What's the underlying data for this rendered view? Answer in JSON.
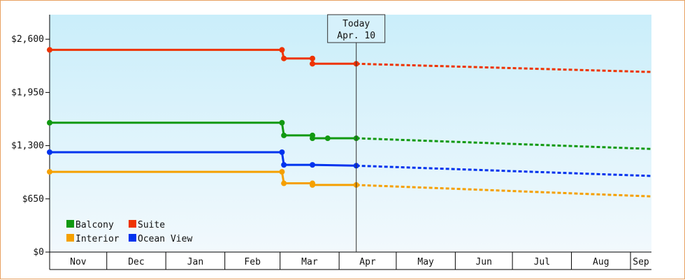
{
  "chart_data": {
    "type": "line",
    "title": "",
    "xlabel": "",
    "ylabel": "",
    "ylim": [
      0,
      2900
    ],
    "y_ticks": [
      "$0",
      "$650",
      "$1,300",
      "$1,950",
      "$2,600"
    ],
    "y_tick_values": [
      0,
      650,
      1300,
      1950,
      2600
    ],
    "x_domain": [
      "2023-11-01",
      "2024-09-12"
    ],
    "months": [
      {
        "label": "Nov",
        "start": "2023-11-01"
      },
      {
        "label": "Dec",
        "start": "2023-12-01"
      },
      {
        "label": "Jan",
        "start": "2024-01-01"
      },
      {
        "label": "Feb",
        "start": "2024-02-01"
      },
      {
        "label": "Mar",
        "start": "2024-03-01"
      },
      {
        "label": "Apr",
        "start": "2024-04-01"
      },
      {
        "label": "May",
        "start": "2024-05-01"
      },
      {
        "label": "Jun",
        "start": "2024-06-01"
      },
      {
        "label": "Jul",
        "start": "2024-07-01"
      },
      {
        "label": "Aug",
        "start": "2024-08-01"
      },
      {
        "label": "Sep",
        "start": "2024-09-01"
      }
    ],
    "today": {
      "title": "Today",
      "label": "Apr. 10",
      "date": "2024-04-10"
    },
    "grid": false,
    "legend_position": "bottom-left",
    "series": [
      {
        "name": "Balcony",
        "color": "#119911",
        "points": [
          [
            "2023-11-01",
            1580
          ],
          [
            "2024-03-02",
            1580
          ],
          [
            "2024-03-03",
            1425
          ],
          [
            "2024-03-18",
            1425
          ],
          [
            "2024-03-18",
            1390
          ],
          [
            "2024-03-26",
            1390
          ],
          [
            "2024-04-10",
            1390
          ]
        ],
        "forecast": [
          [
            "2024-04-10",
            1390
          ],
          [
            "2024-09-12",
            1260
          ]
        ]
      },
      {
        "name": "Suite",
        "color": "#ee3300",
        "points": [
          [
            "2023-11-01",
            2470
          ],
          [
            "2024-03-02",
            2470
          ],
          [
            "2024-03-03",
            2365
          ],
          [
            "2024-03-18",
            2365
          ],
          [
            "2024-03-18",
            2300
          ],
          [
            "2024-04-10",
            2300
          ]
        ],
        "forecast": [
          [
            "2024-04-10",
            2300
          ],
          [
            "2024-09-12",
            2200
          ]
        ]
      },
      {
        "name": "Interior",
        "color": "#f5a000",
        "points": [
          [
            "2023-11-01",
            980
          ],
          [
            "2024-03-02",
            980
          ],
          [
            "2024-03-03",
            840
          ],
          [
            "2024-03-18",
            840
          ],
          [
            "2024-03-18",
            820
          ],
          [
            "2024-04-10",
            820
          ]
        ],
        "forecast": [
          [
            "2024-04-10",
            820
          ],
          [
            "2024-09-12",
            680
          ]
        ]
      },
      {
        "name": "Ocean View",
        "color": "#0033ee",
        "points": [
          [
            "2023-11-01",
            1220
          ],
          [
            "2024-03-02",
            1220
          ],
          [
            "2024-03-03",
            1065
          ],
          [
            "2024-03-18",
            1065
          ],
          [
            "2024-04-10",
            1055
          ]
        ],
        "forecast": [
          [
            "2024-04-10",
            1055
          ],
          [
            "2024-09-12",
            930
          ]
        ]
      }
    ]
  }
}
